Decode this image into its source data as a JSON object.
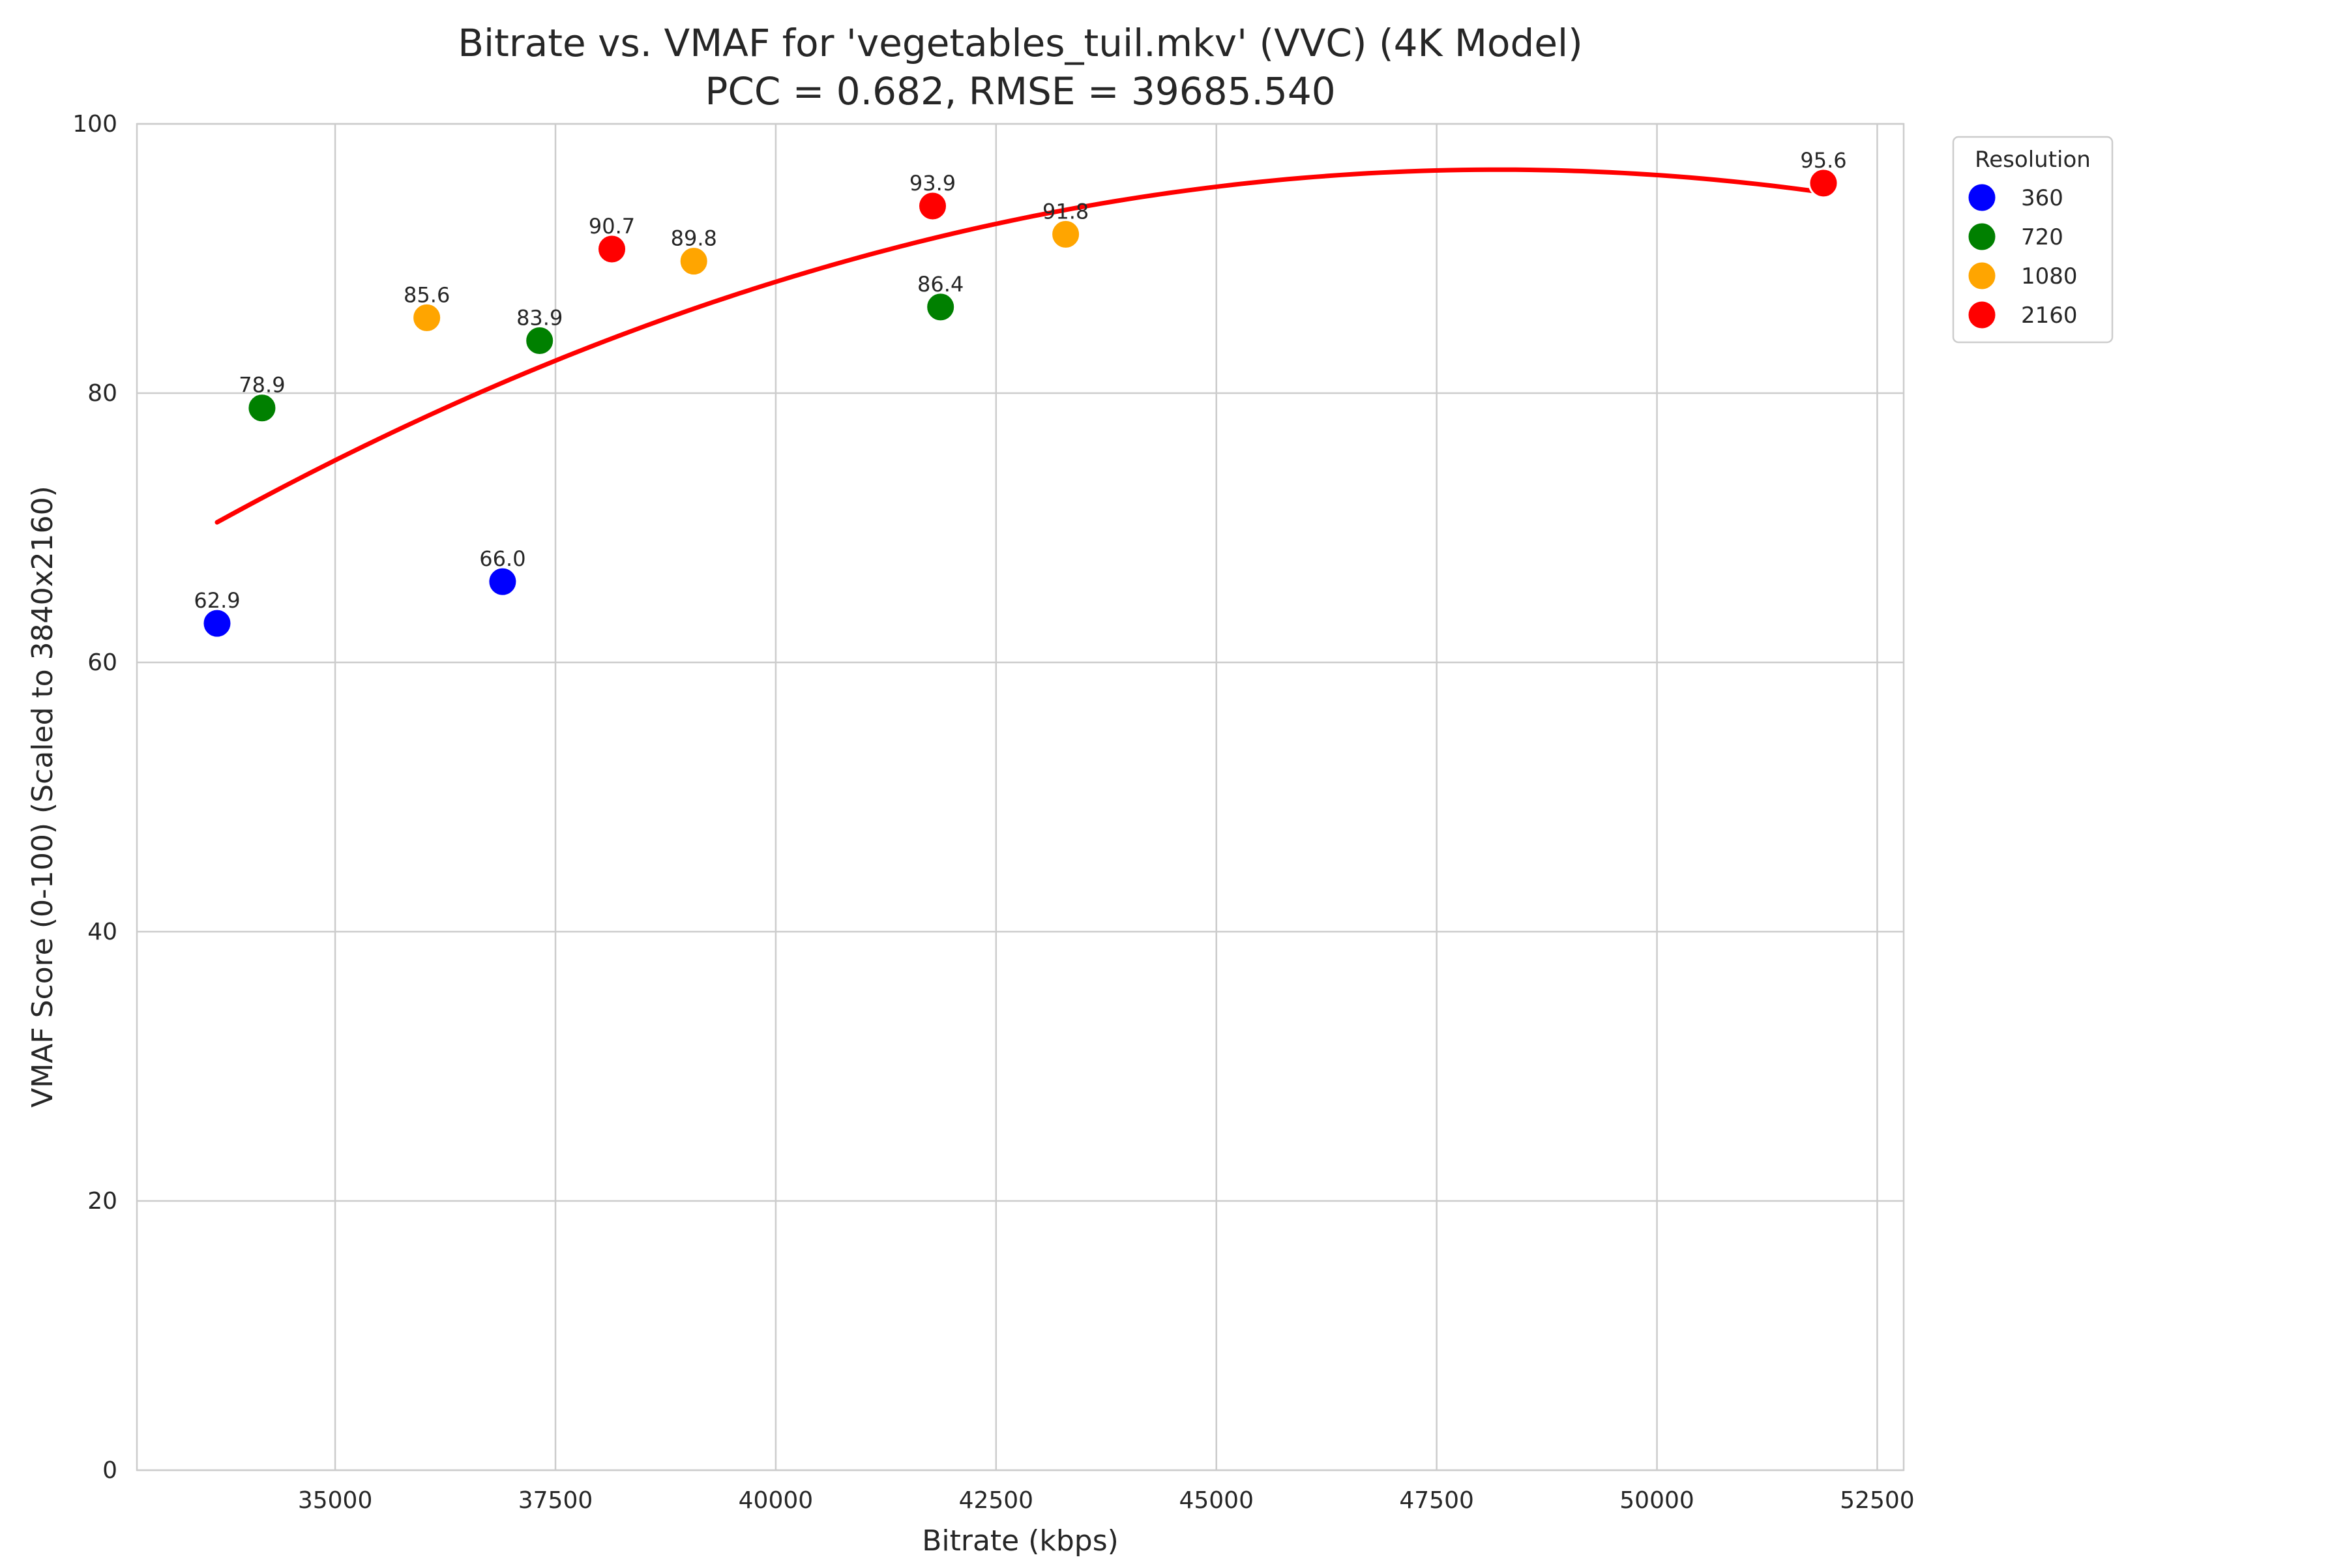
{
  "chart_data": {
    "type": "scatter",
    "title_line1": "Bitrate vs. VMAF for 'vegetables_tuil.mkv' (VVC) (4K Model)",
    "title_line2": "PCC = 0.682, RMSE = 39685.540",
    "xlabel": "Bitrate (kbps)",
    "ylabel": "VMAF Score (0-100) (Scaled to 3840x2160)",
    "xlim": [
      32750,
      52800
    ],
    "ylim": [
      0,
      100
    ],
    "xticks": [
      35000,
      37500,
      40000,
      42500,
      45000,
      47500,
      50000,
      52500
    ],
    "yticks": [
      0,
      20,
      40,
      60,
      80,
      100
    ],
    "grid": true,
    "legend": {
      "title": "Resolution",
      "placement": "outside-top-right",
      "entries": [
        {
          "label": "360",
          "color": "#0000ff"
        },
        {
          "label": "720",
          "color": "#008000"
        },
        {
          "label": "1080",
          "color": "#ffa500"
        },
        {
          "label": "2160",
          "color": "#ff0000"
        }
      ]
    },
    "points": [
      {
        "x": 33660,
        "y": 62.9,
        "label": "62.9",
        "resolution": "360"
      },
      {
        "x": 36900,
        "y": 66.0,
        "label": "66.0",
        "resolution": "360"
      },
      {
        "x": 34170,
        "y": 78.9,
        "label": "78.9",
        "resolution": "720"
      },
      {
        "x": 37320,
        "y": 83.9,
        "label": "83.9",
        "resolution": "720"
      },
      {
        "x": 41870,
        "y": 86.4,
        "label": "86.4",
        "resolution": "720"
      },
      {
        "x": 36040,
        "y": 85.6,
        "label": "85.6",
        "resolution": "1080"
      },
      {
        "x": 39070,
        "y": 89.8,
        "label": "89.8",
        "resolution": "1080"
      },
      {
        "x": 43290,
        "y": 91.8,
        "label": "91.8",
        "resolution": "1080"
      },
      {
        "x": 38140,
        "y": 90.7,
        "label": "90.7",
        "resolution": "2160"
      },
      {
        "x": 41780,
        "y": 93.9,
        "label": "93.9",
        "resolution": "2160"
      },
      {
        "x": 51890,
        "y": 95.6,
        "label": "95.6",
        "resolution": "2160"
      }
    ],
    "fit_curve": {
      "type": "quadratic",
      "color": "#ff0000",
      "x_range": [
        33660,
        51890
      ],
      "vertex": [
        48200,
        96.6
      ],
      "a": -1.239e-07
    }
  }
}
